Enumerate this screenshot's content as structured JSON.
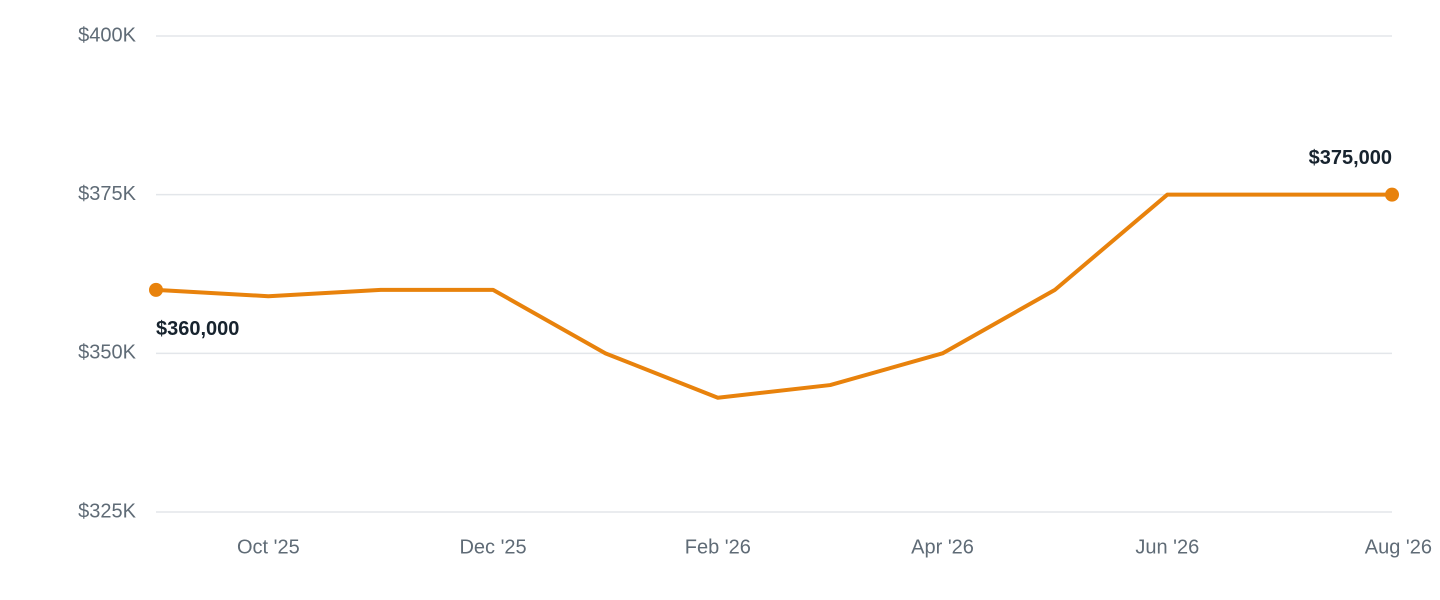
{
  "chart_data": {
    "type": "line",
    "categories": [
      null,
      "Oct '25",
      null,
      "Dec '25",
      null,
      "Feb '26",
      null,
      "Apr '26",
      null,
      "Jun '26",
      null,
      "Aug '26"
    ],
    "series": [
      {
        "color": "#e8820c",
        "values": [
          360000,
          359000,
          360000,
          360000,
          350000,
          343000,
          345000,
          350000,
          360000,
          375000,
          375000,
          375000
        ],
        "value_labels": [
          "$360,000",
          null,
          null,
          null,
          null,
          null,
          null,
          null,
          null,
          null,
          null,
          "$375,000"
        ]
      }
    ],
    "ylim": [
      325000,
      400000
    ],
    "yticks": [
      {
        "value": 325000,
        "label": "$325K"
      },
      {
        "value": 350000,
        "label": "$350K"
      },
      {
        "value": 375000,
        "label": "$375K"
      },
      {
        "value": 400000,
        "label": "$400K"
      }
    ],
    "grid": true
  }
}
